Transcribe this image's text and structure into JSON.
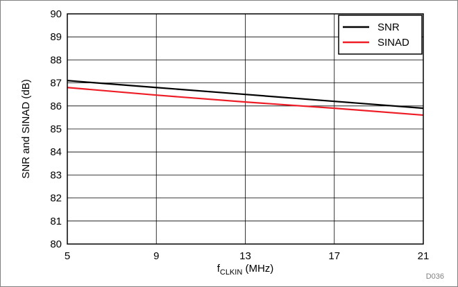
{
  "chart_data": {
    "type": "line",
    "xlabel_main": "f",
    "xlabel_sub": "CLKIN",
    "xlabel_unit": " (MHz)",
    "ylabel": "SNR and SINAD (dB)",
    "xlim": [
      5,
      21
    ],
    "ylim": [
      80,
      90
    ],
    "xticks": [
      5,
      9,
      13,
      17,
      21
    ],
    "yticks": [
      80,
      81,
      82,
      83,
      84,
      85,
      86,
      87,
      88,
      89,
      90
    ],
    "grid": true,
    "legend_position": "top-right",
    "series": [
      {
        "name": "SNR",
        "color": "#000000",
        "x": [
          5,
          9,
          13,
          17,
          21
        ],
        "y": [
          87.1,
          86.8,
          86.5,
          86.2,
          85.9
        ]
      },
      {
        "name": "SINAD",
        "color": "#ee1c25",
        "x": [
          5,
          9,
          13,
          17,
          21
        ],
        "y": [
          86.8,
          86.47,
          86.17,
          85.9,
          85.6
        ]
      }
    ],
    "figure_id": "D036"
  }
}
